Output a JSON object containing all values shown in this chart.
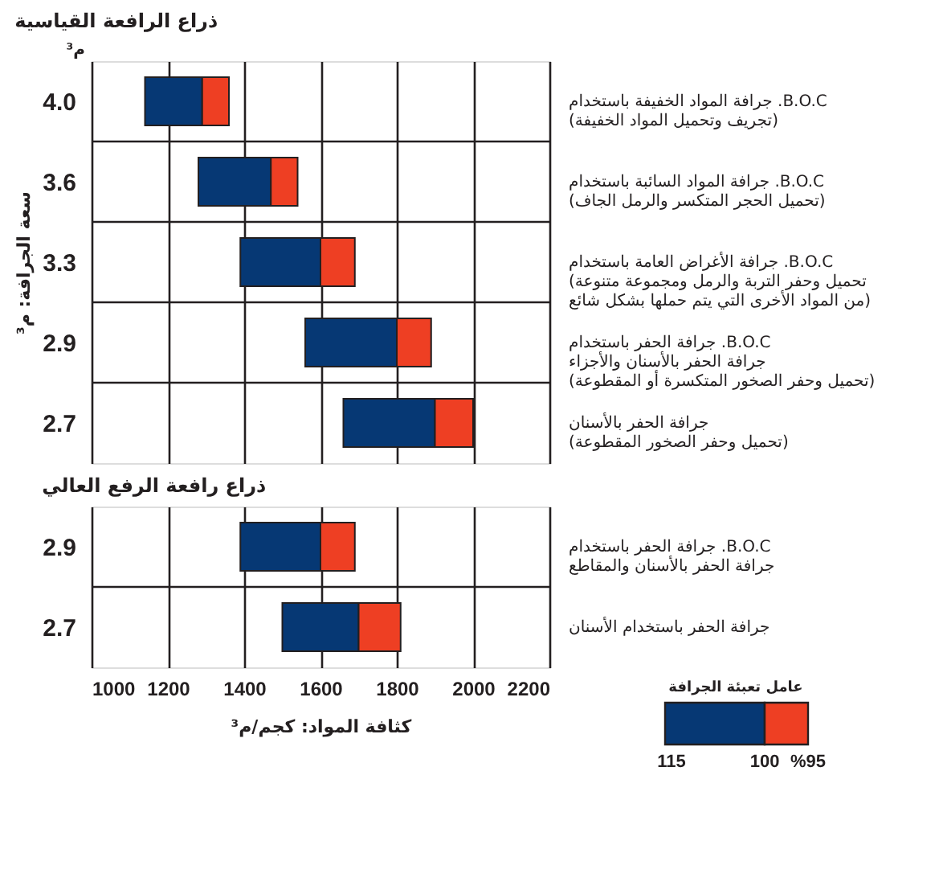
{
  "chart_data": [
    {
      "type": "bar",
      "orientation": "horizontal",
      "title": "ذراع الرافعة القياسية",
      "ylabel": "سعة الجرافة: م³",
      "categories": [
        "4.0",
        "3.6",
        "3.3",
        "2.9",
        "2.7"
      ],
      "series": [
        {
          "color": "#063874",
          "base": [
            1140,
            1280,
            1390,
            1560,
            1660
          ],
          "values": [
            150,
            190,
            210,
            240,
            240
          ]
        },
        {
          "color": "#ee3f23",
          "base": [
            1290,
            1470,
            1600,
            1800,
            1900
          ],
          "values": [
            70,
            70,
            90,
            90,
            100
          ]
        }
      ],
      "xlim": [
        1000,
        2200
      ],
      "xticks": [
        1000,
        1200,
        1400,
        1600,
        1800,
        2000,
        2200
      ],
      "grid": true,
      "tick_labels": "y",
      "annotations": [
        "م³",
        "جرافة المواد الخفيفة باستخدام .B.O.C\n(تجريف وتحميل المواد الخفيفة)",
        "جرافة المواد السائبة باستخدام .B.O.C\n(تحميل الحجر المتكسر والرمل الجاف)",
        "جرافة الأغراض العامة باستخدام .B.O.C\n(تحميل وحفر التربة والرمل ومجموعة متنوعة\nمن المواد الأخرى التي يتم حملها بشكل شائع)",
        "جرافة الحفر باستخدام .B.O.C\nجرافة الحفر بالأسنان والأجزاء\n(تحميل وحفر الصخور المتكسرة أو المقطوعة)",
        "جرافة الحفر بالأسنان\n(تحميل وحفر الصخور المقطوعة)"
      ]
    },
    {
      "type": "bar",
      "orientation": "horizontal",
      "title": "ذراع رافعة الرفع العالي",
      "xlabel": "كثافة المواد: كجم/م³",
      "categories": [
        "2.9",
        "2.7"
      ],
      "series": [
        {
          "color": "#063874",
          "base": [
            1390,
            1500
          ],
          "values": [
            210,
            200
          ]
        },
        {
          "color": "#ee3f23",
          "base": [
            1600,
            1700
          ],
          "values": [
            90,
            110
          ]
        }
      ],
      "xlim": [
        1000,
        2200
      ],
      "xticks": [
        1000,
        1200,
        1400,
        1600,
        1800,
        2000,
        2200
      ],
      "grid": true,
      "legend_title": "عامل تعبئة الجرافة",
      "annotations": [
        "115",
        "100",
        "%95",
        "جرافة الحفر باستخدام .B.O.C\nجرافة الحفر بالأسنان والمقاطع",
        "جرافة الحفر باستخدام الأسنان"
      ]
    }
  ]
}
